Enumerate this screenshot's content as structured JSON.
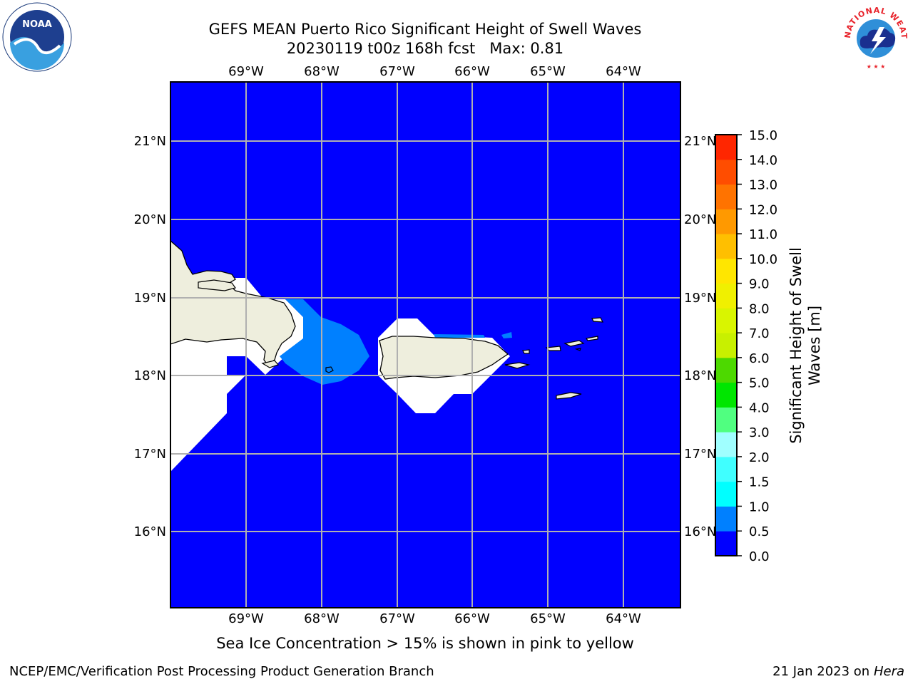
{
  "title": {
    "line1": "GEFS MEAN Puerto Rico Significant Height of Swell Waves",
    "line2": "20230119 t00z 168h fcst   Max: 0.81"
  },
  "map": {
    "lon_ticks": [
      "69°W",
      "68°W",
      "67°W",
      "66°W",
      "65°W",
      "64°W"
    ],
    "lat_ticks": [
      "21°N",
      "20°N",
      "19°N",
      "18°N",
      "17°N",
      "16°N"
    ],
    "ocean_color": "#0000ff",
    "land_color": "#eeeedd",
    "swell_color_0_5": "#0080ff"
  },
  "colorbar": {
    "label_line1": "Significant Height of Swell",
    "label_line2": "Waves [m]",
    "ticks": [
      "0.0",
      "0.5",
      "1.0",
      "1.5",
      "2.0",
      "3.0",
      "4.0",
      "5.0",
      "6.0",
      "7.0",
      "8.0",
      "9.0",
      "10.0",
      "11.0",
      "12.0",
      "13.0",
      "14.0",
      "15.0"
    ],
    "colors": [
      "#0000ff",
      "#0080ff",
      "#00ffff",
      "#40ffff",
      "#a0ffff",
      "#50ff80",
      "#00e600",
      "#4dd900",
      "#c8f000",
      "#d9f500",
      "#f0f000",
      "#ffe600",
      "#ffbf00",
      "#ff9900",
      "#ff7300",
      "#ff4d00",
      "#ff2600"
    ]
  },
  "sea_ice_note": "Sea Ice Concentration > 15% is shown in pink to yellow",
  "footer": {
    "left": "NCEP/EMC/Verification Post Processing Product Generation Branch",
    "right_date": "21 Jan 2023 on ",
    "right_host": "Hera"
  },
  "logos": {
    "noaa_text": "NOAA",
    "nws_text": "NATIONAL WEATHER SERVICE"
  }
}
